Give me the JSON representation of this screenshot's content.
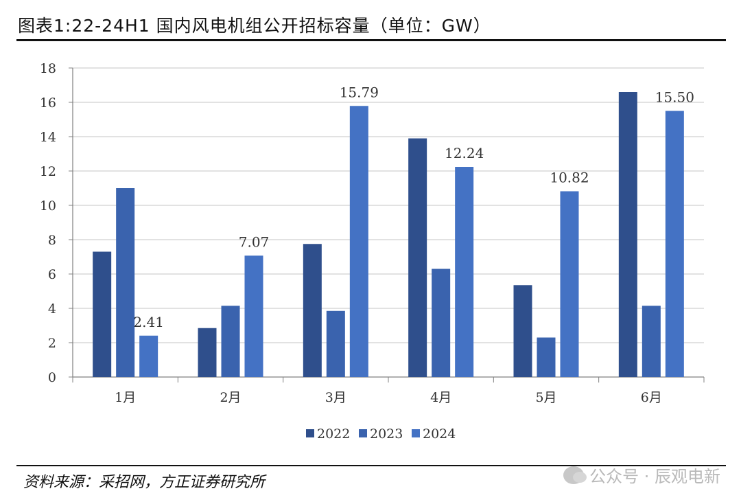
{
  "title": "图表1:22-24H1 国内风电机组公开招标容量（单位：GW）",
  "source": "资料来源：采招网，方正证券研究所",
  "watermark": "公众号 · 辰观电新",
  "colors": {
    "2022": "#2f4f8c",
    "2023": "#3a63ae",
    "2024": "#4472c4",
    "grid": "#d9d9d9",
    "axis": "#808080"
  },
  "chart_data": {
    "type": "bar",
    "categories": [
      "1月",
      "2月",
      "3月",
      "4月",
      "5月",
      "6月"
    ],
    "series": [
      {
        "name": "2022",
        "values": [
          7.3,
          2.85,
          7.75,
          13.9,
          5.35,
          16.6
        ]
      },
      {
        "name": "2023",
        "values": [
          11.0,
          4.15,
          3.85,
          6.3,
          2.3,
          4.15
        ]
      },
      {
        "name": "2024",
        "values": [
          2.41,
          7.07,
          15.79,
          12.24,
          10.82,
          15.5
        ]
      }
    ],
    "data_labels": {
      "2024": [
        "2.41",
        "7.07",
        "15.79",
        "12.24",
        "10.82",
        "15.50"
      ]
    },
    "yticks": [
      "0",
      "2",
      "4",
      "6",
      "8",
      "10",
      "12",
      "14",
      "16",
      "18"
    ],
    "ylim": [
      0,
      18
    ],
    "grid": true,
    "legend_position": "bottom-center"
  }
}
